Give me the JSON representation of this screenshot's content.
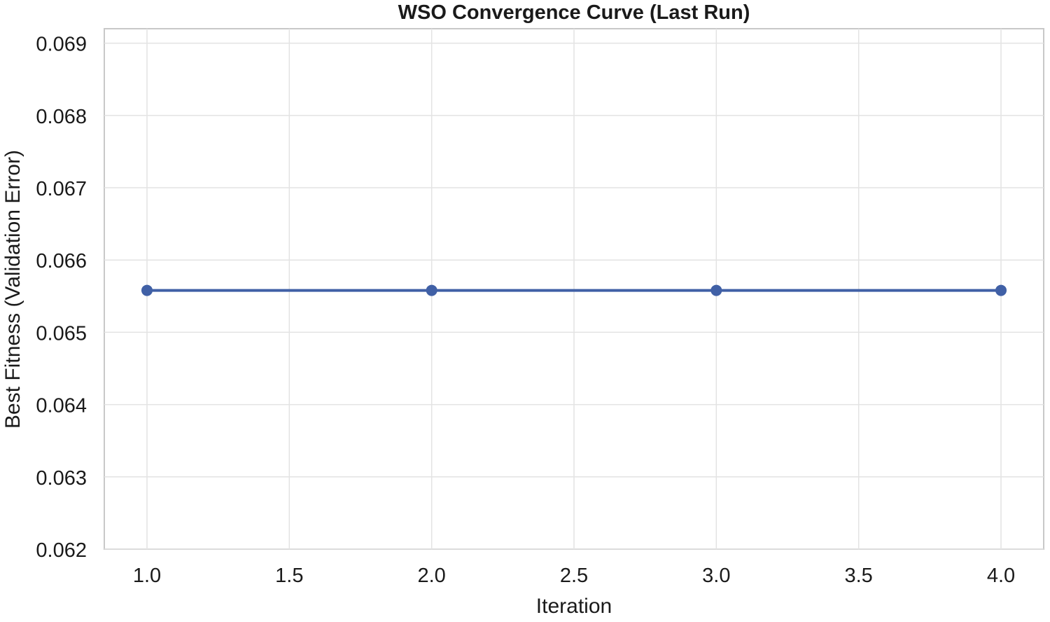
{
  "chart_data": {
    "type": "line",
    "title": "WSO Convergence Curve (Last Run)",
    "xlabel": "Iteration",
    "ylabel": "Best Fitness (Validation Error)",
    "xlim": [
      0.85,
      4.15
    ],
    "ylim": [
      0.062,
      0.0692
    ],
    "x_ticks": [
      1.0,
      1.5,
      2.0,
      2.5,
      3.0,
      3.5,
      4.0
    ],
    "x_tick_labels": [
      "1.0",
      "1.5",
      "2.0",
      "2.5",
      "3.0",
      "3.5",
      "4.0"
    ],
    "y_ticks": [
      0.062,
      0.063,
      0.064,
      0.065,
      0.066,
      0.067,
      0.068,
      0.069
    ],
    "y_tick_labels": [
      "0.062",
      "0.063",
      "0.064",
      "0.065",
      "0.066",
      "0.067",
      "0.068",
      "0.069"
    ],
    "grid": true,
    "series": [
      {
        "color": "#4060a6",
        "marker": "circle",
        "x": [
          1,
          2,
          3,
          4
        ],
        "y": [
          0.06558,
          0.06558,
          0.06558,
          0.06558
        ]
      }
    ]
  }
}
